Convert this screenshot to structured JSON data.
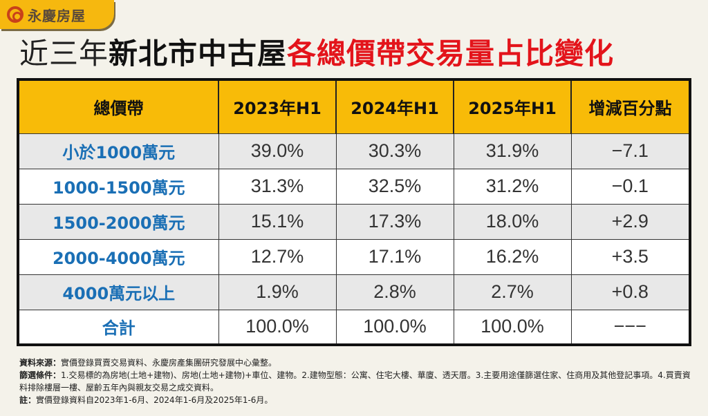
{
  "logo": {
    "text": "永慶房屋"
  },
  "title": {
    "part1": "近三年",
    "part2": "新北市中古屋",
    "part3": "各總價帶交易量占比變化"
  },
  "chart_data": {
    "type": "table",
    "columns": [
      "總價帶",
      "2023年H1",
      "2024年H1",
      "2025年H1",
      "增減百分點"
    ],
    "rows": [
      [
        "小於1000萬元",
        "39.0%",
        "30.3%",
        "31.9%",
        "−7.1"
      ],
      [
        "1000-1500萬元",
        "31.3%",
        "32.5%",
        "31.2%",
        "−0.1"
      ],
      [
        "1500-2000萬元",
        "15.1%",
        "17.3%",
        "18.0%",
        "+2.9"
      ],
      [
        "2000-4000萬元",
        "12.7%",
        "17.1%",
        "16.2%",
        "+3.5"
      ],
      [
        "4000萬元以上",
        "1.9%",
        "2.8%",
        "2.7%",
        "+0.8"
      ],
      [
        "合計",
        "100.0%",
        "100.0%",
        "100.0%",
        "−−−"
      ]
    ],
    "colors": {
      "header": "#f8bb08",
      "band_text": "#1a6fb5",
      "title_highlight": "#e3141b"
    }
  },
  "notes": {
    "source_label": "資料來源：",
    "source": "實價登錄買賣交易資料、永慶房產集團研究發展中心彙整。",
    "filter_label": "篩選條件：",
    "filter": "1.交易標的為房地(土地+建物)、房地(土地+建物)+車位、建物。2.建物型態：公寓、住宅大樓、華廈、透天厝。3.主要用途僅篩選住家、住商用及其他登記事項。4.買賣資料排除樓層一樓、屋齡五年內與親友交易之成交資料。",
    "note_label": "註：",
    "note": "實價登錄資料自2023年1-6月、2024年1-6月及2025年1-6月。"
  }
}
